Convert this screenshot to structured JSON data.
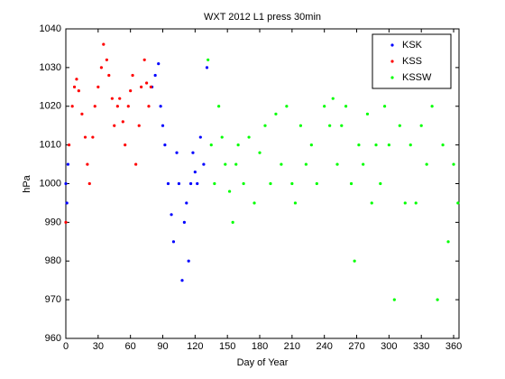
{
  "chart_data": {
    "type": "scatter",
    "title": "WXT 2012 L1 press 30min",
    "xlabel": "Day of Year",
    "ylabel": "hPa",
    "xlim": [
      0,
      365
    ],
    "ylim": [
      960,
      1040
    ],
    "xticks": [
      0,
      30,
      60,
      90,
      120,
      150,
      180,
      210,
      240,
      270,
      300,
      330,
      360
    ],
    "yticks": [
      960,
      970,
      980,
      990,
      1000,
      1010,
      1020,
      1030,
      1040
    ],
    "legend": "upper right",
    "series": [
      {
        "name": "KSK",
        "color": "#0000ff",
        "x": [
          0,
          1,
          2,
          80,
          83,
          86,
          88,
          90,
          92,
          95,
          98,
          100,
          103,
          105,
          108,
          110,
          112,
          114,
          116,
          118,
          120,
          122,
          125,
          128,
          131
        ],
        "values": [
          1000,
          995,
          1005,
          1025,
          1028,
          1031,
          1020,
          1015,
          1010,
          1000,
          992,
          985,
          1008,
          1000,
          975,
          990,
          995,
          980,
          1000,
          1008,
          1003,
          1000,
          1012,
          1005,
          1030
        ]
      },
      {
        "name": "KSS",
        "color": "#ff0000",
        "x": [
          0,
          3,
          6,
          8,
          10,
          12,
          15,
          18,
          20,
          22,
          25,
          27,
          30,
          33,
          35,
          38,
          40,
          43,
          45,
          48,
          50,
          53,
          55,
          58,
          60,
          62,
          65,
          68,
          70,
          73,
          75,
          77,
          79
        ],
        "values": [
          990,
          1010,
          1020,
          1025,
          1027,
          1024,
          1018,
          1012,
          1005,
          1000,
          1012,
          1020,
          1025,
          1030,
          1036,
          1032,
          1028,
          1022,
          1015,
          1020,
          1022,
          1016,
          1010,
          1020,
          1024,
          1028,
          1005,
          1015,
          1025,
          1032,
          1026,
          1020,
          1025
        ]
      },
      {
        "name": "KSSW",
        "color": "#00ff00",
        "x": [
          132,
          135,
          138,
          142,
          145,
          148,
          152,
          155,
          158,
          160,
          165,
          170,
          175,
          180,
          185,
          190,
          195,
          200,
          205,
          210,
          213,
          218,
          223,
          228,
          233,
          240,
          245,
          248,
          252,
          256,
          260,
          265,
          268,
          272,
          276,
          280,
          284,
          288,
          292,
          296,
          300,
          305,
          310,
          315,
          320,
          325,
          330,
          335,
          340,
          345,
          350,
          355,
          360,
          364
        ],
        "values": [
          1032,
          1010,
          1000,
          1020,
          1012,
          1005,
          998,
          990,
          1005,
          1010,
          1000,
          1012,
          995,
          1008,
          1015,
          1000,
          1018,
          1005,
          1020,
          1000,
          995,
          1015,
          1005,
          1010,
          1000,
          1020,
          1015,
          1022,
          1005,
          1015,
          1020,
          1000,
          980,
          1010,
          1005,
          1018,
          995,
          1010,
          1000,
          1020,
          1010,
          970,
          1015,
          995,
          1010,
          995,
          1015,
          1005,
          1020,
          970,
          1010,
          985,
          1005,
          995
        ]
      }
    ]
  }
}
